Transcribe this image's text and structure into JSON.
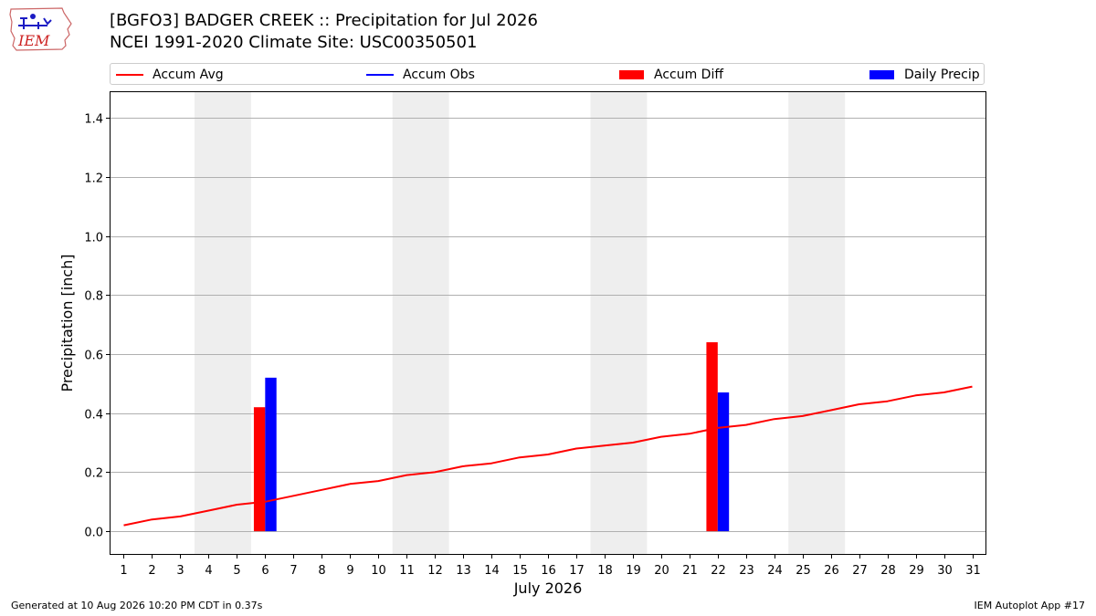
{
  "logo": {
    "text": "IEM",
    "icon": "iem-iowa-map-logo"
  },
  "header": {
    "title": "[BGFO3] BADGER CREEK :: Precipitation for Jul 2026",
    "subtitle": "NCEI 1991-2020 Climate Site: USC00350501"
  },
  "legend": {
    "items": [
      {
        "label": "Accum Avg",
        "kind": "line",
        "color": "#ff0000"
      },
      {
        "label": "Accum Obs",
        "kind": "line",
        "color": "#0000ff"
      },
      {
        "label": "Accum Diff",
        "kind": "bar",
        "color": "#ff0000"
      },
      {
        "label": "Daily Precip",
        "kind": "bar",
        "color": "#0000ff"
      }
    ]
  },
  "footer": {
    "left": "Generated at 10 Aug 2026 10:20 PM CDT in 0.37s",
    "right": "IEM Autoplot App #17"
  },
  "chart_data": {
    "type": "bar",
    "xlabel": "July 2026",
    "ylabel": "Precipitation [inch]",
    "x": [
      1,
      2,
      3,
      4,
      5,
      6,
      7,
      8,
      9,
      10,
      11,
      12,
      13,
      14,
      15,
      16,
      17,
      18,
      19,
      20,
      21,
      22,
      23,
      24,
      25,
      26,
      27,
      28,
      29,
      30,
      31
    ],
    "xlim": [
      0.5,
      31.5
    ],
    "ylim": [
      -0.08,
      1.49
    ],
    "yticks": [
      0.0,
      0.2,
      0.4,
      0.6,
      0.8,
      1.0,
      1.2,
      1.4
    ],
    "ytick_labels": [
      "0.0",
      "0.2",
      "0.4",
      "0.6",
      "0.8",
      "1.0",
      "1.2",
      "1.4"
    ],
    "grid": "horizontal",
    "weekend_shading": [
      [
        3.5,
        5.5
      ],
      [
        10.5,
        12.5
      ],
      [
        17.5,
        19.5
      ],
      [
        24.5,
        26.5
      ]
    ],
    "series": [
      {
        "name": "Accum Avg",
        "type": "line",
        "color": "#ff0000",
        "values": [
          0.02,
          0.04,
          0.05,
          0.07,
          0.09,
          0.1,
          0.12,
          0.14,
          0.16,
          0.17,
          0.19,
          0.2,
          0.22,
          0.23,
          0.25,
          0.26,
          0.28,
          0.29,
          0.3,
          0.32,
          0.33,
          0.35,
          0.36,
          0.38,
          0.39,
          0.41,
          0.43,
          0.44,
          0.46,
          0.47,
          0.49
        ]
      },
      {
        "name": "Accum Diff",
        "type": "bar",
        "color": "#ff0000",
        "points": [
          {
            "x": 6,
            "value": 0.42
          },
          {
            "x": 22,
            "value": 0.64
          }
        ]
      },
      {
        "name": "Daily Precip",
        "type": "bar",
        "color": "#0000ff",
        "points": [
          {
            "x": 6,
            "value": 0.52
          },
          {
            "x": 22,
            "value": 0.47
          }
        ]
      }
    ]
  }
}
